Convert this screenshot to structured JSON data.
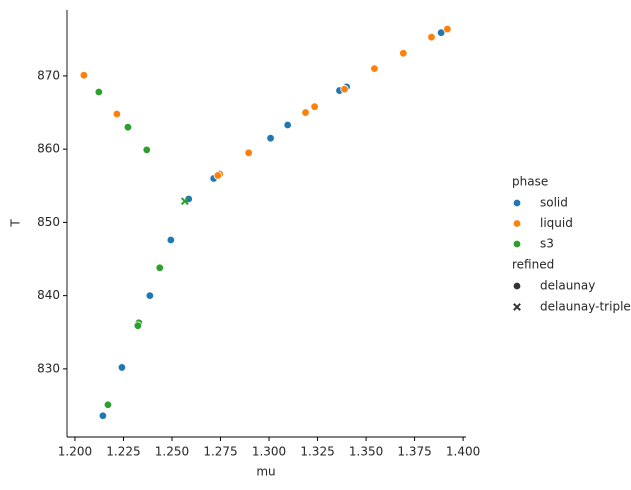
{
  "chart_data": {
    "type": "scatter",
    "x_label": "mu",
    "y_label": "T",
    "xlim": [
      1.1959,
      1.4015
    ],
    "ylim": [
      820.7,
      879.0
    ],
    "xticks": [
      {
        "value": 1.2,
        "label": "1.200"
      },
      {
        "value": 1.225,
        "label": "1.225"
      },
      {
        "value": 1.25,
        "label": "1.250"
      },
      {
        "value": 1.275,
        "label": "1.275"
      },
      {
        "value": 1.3,
        "label": "1.300"
      },
      {
        "value": 1.325,
        "label": "1.325"
      },
      {
        "value": 1.35,
        "label": "1.350"
      },
      {
        "value": 1.375,
        "label": "1.375"
      },
      {
        "value": 1.4,
        "label": "1.400"
      }
    ],
    "yticks": [
      830,
      840,
      850,
      860,
      870
    ],
    "legend_title": "phase",
    "series": [
      {
        "name": "solid",
        "color": "#1f77b4",
        "x": [
          1.2144,
          1.2242,
          1.2386,
          1.2494,
          1.2586,
          1.2715,
          1.3008,
          1.3096,
          1.3363,
          1.34,
          1.3887,
          1.2329
        ],
        "values": [
          823.6,
          830.2,
          840.0,
          847.6,
          853.2,
          856.0,
          861.5,
          863.3,
          868.0,
          868.5,
          875.9,
          836.4
        ],
        "markers": [
          0,
          0,
          0,
          0,
          0,
          0,
          0,
          0,
          0,
          0,
          0,
          0
        ]
      },
      {
        "name": "liquid",
        "color": "#ff7f0e",
        "x": [
          1.2046,
          1.2216,
          1.2746,
          1.2736,
          1.2895,
          1.3188,
          1.3235,
          1.3389,
          1.3543,
          1.3692,
          1.3837,
          1.3919
        ],
        "values": [
          870.1,
          864.8,
          856.6,
          856.4,
          859.5,
          865.0,
          865.8,
          868.2,
          871.0,
          873.1,
          875.3,
          876.4
        ],
        "markers": [
          0,
          0,
          0,
          0,
          0,
          0,
          0,
          0,
          0,
          0,
          0,
          0
        ]
      },
      {
        "name": "s3",
        "color": "#2ca02c",
        "x": [
          1.2123,
          1.2273,
          1.237,
          1.2437,
          1.2329,
          1.2324,
          1.217,
          1.2566
        ],
        "values": [
          867.8,
          863.0,
          859.9,
          843.8,
          836.3,
          835.9,
          825.1,
          852.9
        ],
        "markers": [
          0,
          0,
          0,
          0,
          0,
          0,
          0,
          1
        ]
      }
    ],
    "style_legend": {
      "title": "refined",
      "entries": [
        "delaunay",
        "delaunay-triple"
      ]
    }
  }
}
